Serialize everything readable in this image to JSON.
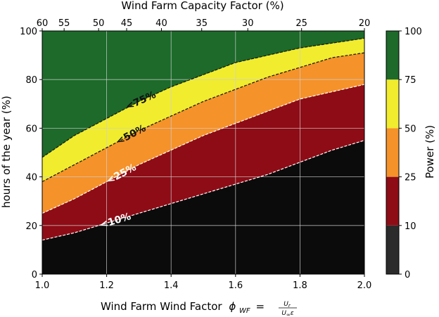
{
  "chart_data": {
    "type": "area",
    "xlabel": "Wind Farm Wind Factor",
    "xlabel_symbol": "ϕ",
    "xlabel_symbol_sub": "WF",
    "xlabel_frac_num": "U",
    "xlabel_frac_num_sub": "r",
    "xlabel_frac_den": "U",
    "xlabel_frac_den_sub": "∞",
    "xlabel_frac_den_tail": "ε",
    "ylabel": "hours of the year (%)",
    "top_xlabel": "Wind Farm Capacity Factor (%)",
    "colorbar_label": "Power (%)",
    "xlim": [
      1.0,
      2.0
    ],
    "ylim": [
      0,
      100
    ],
    "x_ticks": [
      1.0,
      1.2,
      1.4,
      1.6,
      1.8,
      2.0
    ],
    "x_tick_labels": [
      "1.0",
      "1.2",
      "1.4",
      "1.6",
      "1.8",
      "2.0"
    ],
    "y_ticks": [
      0,
      20,
      40,
      60,
      80,
      100
    ],
    "y_tick_labels": [
      "0",
      "20",
      "40",
      "60",
      "80",
      "100"
    ],
    "top_ticks": [
      {
        "label": "60",
        "x": 1.0
      },
      {
        "label": "55",
        "x": 1.068
      },
      {
        "label": "50",
        "x": 1.175
      },
      {
        "label": "45",
        "x": 1.262
      },
      {
        "label": "40",
        "x": 1.37
      },
      {
        "label": "35",
        "x": 1.495
      },
      {
        "label": "30",
        "x": 1.638
      },
      {
        "label": "25",
        "x": 1.805
      },
      {
        "label": "20",
        "x": 2.0
      }
    ],
    "grid": true,
    "x": [
      1.0,
      1.1,
      1.2,
      1.3,
      1.4,
      1.5,
      1.6,
      1.7,
      1.8,
      1.9,
      2.0
    ],
    "contours": [
      {
        "name": "<10%",
        "level": 10,
        "values": [
          14,
          17,
          21,
          25,
          29,
          33,
          37,
          41,
          46,
          51,
          55
        ],
        "line_color": "#ffffff",
        "label_x": 1.23
      },
      {
        "name": "<25%",
        "level": 25,
        "values": [
          25,
          31,
          38,
          45,
          51,
          57,
          62,
          67,
          72,
          75,
          78
        ],
        "line_color": "#ffffff",
        "label_x": 1.25
      },
      {
        "name": "<50%",
        "level": 50,
        "values": [
          38,
          45,
          52,
          59,
          65,
          71,
          76,
          81,
          85,
          89,
          91
        ],
        "line_color": "#111111",
        "label_x": 1.28
      },
      {
        "name": "<75%",
        "level": 75,
        "values": [
          48,
          57,
          64,
          71,
          77,
          82,
          87,
          90,
          93,
          95,
          97
        ],
        "line_color": "#111111",
        "label_x": 1.31
      }
    ],
    "bands": [
      {
        "range": "0-10",
        "color": "#0b0b0b"
      },
      {
        "range": "10-25",
        "color": "#8e0c16"
      },
      {
        "range": "25-50",
        "color": "#f5922a"
      },
      {
        "range": "50-75",
        "color": "#f1ec2e"
      },
      {
        "range": "75-100",
        "color": "#1d6a2a"
      }
    ],
    "colorbar": {
      "ticks": [
        0,
        10,
        25,
        50,
        75,
        100
      ],
      "tick_labels": [
        "0",
        "10",
        "25",
        "50",
        "75",
        "100"
      ],
      "segments": [
        {
          "from": 0,
          "to": 10,
          "color": "#2b2b2b"
        },
        {
          "from": 10,
          "to": 25,
          "color": "#8e0c16"
        },
        {
          "from": 25,
          "to": 50,
          "color": "#f5922a"
        },
        {
          "from": 50,
          "to": 75,
          "color": "#f1ec2e"
        },
        {
          "from": 75,
          "to": 100,
          "color": "#1d6a2a"
        }
      ]
    }
  }
}
